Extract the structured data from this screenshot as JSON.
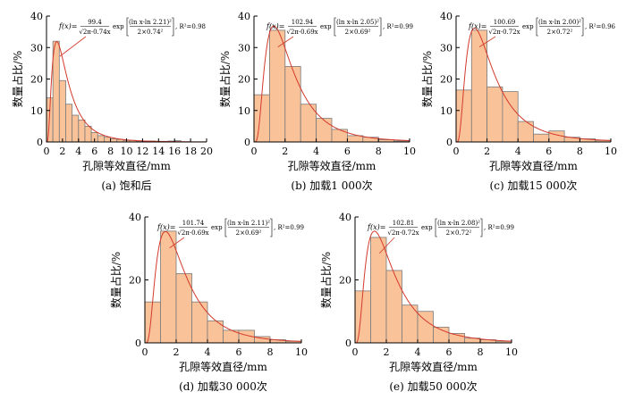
{
  "colors": {
    "bar_fill": "#f9c299",
    "bar_edge": "#7a7a7a",
    "fit_curve": "#d33a2c"
  },
  "chart_data": [
    {
      "type": "bar",
      "caption": "(a) 饱和后",
      "xlabel": "孔隙等效直径/mm",
      "ylabel": "数量占比/%",
      "xlim": [
        0,
        20
      ],
      "ylim": [
        0,
        40
      ],
      "xticks": [
        0,
        2,
        4,
        6,
        8,
        10,
        12,
        14,
        16,
        18,
        20
      ],
      "yticks": [
        0,
        10,
        20,
        30,
        40
      ],
      "bin_width": 0.8,
      "bin_start": [
        0,
        0.8,
        1.6,
        2.4,
        3.2,
        4.0,
        4.8,
        5.6,
        6.4,
        7.2,
        8.0,
        8.8,
        9.6,
        10.4,
        11.2,
        12.0,
        12.8,
        13.6,
        14.4,
        15.2,
        16.0
      ],
      "values": [
        14.0,
        32.0,
        19.5,
        12.0,
        8.5,
        7.0,
        5.0,
        3.0,
        2.0,
        1.5,
        1.0,
        0.8,
        0.5,
        0.5,
        0.3,
        0.3,
        0.3,
        0.2,
        0.2,
        0.3,
        0.4
      ],
      "fit": {
        "A": 99.4,
        "mu": 2.21,
        "sigma": 0.74,
        "r2": 0.98
      },
      "equation": {
        "lhs": "f(x)=",
        "numerator": "99.4",
        "denominator": "√2π·0.74x",
        "exp": "exp",
        "exp_numerator": "(ln x-ln 2.21)²",
        "exp_denominator": "2×0.74²",
        "r2": ", R²=0.98"
      }
    },
    {
      "type": "bar",
      "caption": "(b) 加载1 000次",
      "xlabel": "孔隙等效直径/mm",
      "ylabel": "数量占比/%",
      "xlim": [
        0,
        10
      ],
      "ylim": [
        0,
        40
      ],
      "xticks": [
        0,
        2,
        4,
        6,
        8,
        10
      ],
      "yticks": [
        0,
        10,
        20,
        30,
        40
      ],
      "bin_width": 1.0,
      "bin_start": [
        0,
        1,
        2,
        3,
        4,
        5,
        6,
        7,
        8,
        9
      ],
      "values": [
        15.0,
        35.5,
        24.0,
        12.0,
        7.5,
        4.0,
        2.0,
        1.5,
        0.7,
        0.3
      ],
      "fit": {
        "A": 102.94,
        "mu": 2.05,
        "sigma": 0.69,
        "r2": 0.99
      },
      "equation": {
        "lhs": "f(x)=",
        "numerator": "102.94",
        "denominator": "√2π·0.69x",
        "exp": "exp",
        "exp_numerator": "(ln x-ln 2.05)²",
        "exp_denominator": "2×0.69²",
        "r2": ", R²=0.99"
      }
    },
    {
      "type": "bar",
      "caption": "(c) 加载15 000次",
      "xlabel": "孔隙等效直径/mm",
      "ylabel": "数量占比/%",
      "xlim": [
        0,
        10
      ],
      "ylim": [
        0,
        40
      ],
      "xticks": [
        0,
        2,
        4,
        6,
        8,
        10
      ],
      "yticks": [
        0,
        10,
        20,
        30,
        40
      ],
      "bin_width": 1.0,
      "bin_start": [
        0,
        1,
        2,
        3,
        4,
        5,
        6,
        7,
        8,
        9
      ],
      "values": [
        16.5,
        35.5,
        17.5,
        16.0,
        6.5,
        2.5,
        3.5,
        1.5,
        1.0,
        0.5
      ],
      "fit": {
        "A": 100.69,
        "mu": 2.0,
        "sigma": 0.72,
        "r2": 0.96
      },
      "equation": {
        "lhs": "f(x)=",
        "numerator": "100.69",
        "denominator": "√2π·0.72x",
        "exp": "exp",
        "exp_numerator": "(ln x-ln 2.00)²",
        "exp_denominator": "2×0.72²",
        "r2": ", R²=0.96"
      }
    },
    {
      "type": "bar",
      "caption": "(d) 加载30 000次",
      "xlabel": "孔隙等效直径/mm",
      "ylabel": "数量占比/%",
      "xlim": [
        0,
        10
      ],
      "ylim": [
        0,
        40
      ],
      "xticks": [
        0,
        2,
        4,
        6,
        8,
        10
      ],
      "yticks": [
        0,
        20,
        40
      ],
      "bin_width": 1.0,
      "bin_start": [
        0,
        1,
        2,
        3,
        4,
        5,
        6,
        7,
        8,
        9
      ],
      "values": [
        13.0,
        35.5,
        22.0,
        13.0,
        7.0,
        4.0,
        4.0,
        2.0,
        1.0,
        0.5
      ],
      "fit": {
        "A": 101.74,
        "mu": 2.11,
        "sigma": 0.69,
        "r2": 0.99
      },
      "equation": {
        "lhs": "f(x)=",
        "numerator": "101.74",
        "denominator": "√2π·0.69x",
        "exp": "exp",
        "exp_numerator": "(ln x-ln 2.11)²",
        "exp_denominator": "2×0.69²",
        "r2": ", R²=0.99"
      }
    },
    {
      "type": "bar",
      "caption": "(e) 加载50 000次",
      "xlabel": "孔隙等效直径/mm",
      "ylabel": "数量占比/%",
      "xlim": [
        0,
        10
      ],
      "ylim": [
        0,
        40
      ],
      "xticks": [
        0,
        2,
        4,
        6,
        8,
        10
      ],
      "yticks": [
        0,
        20,
        40
      ],
      "bin_width": 1.0,
      "bin_start": [
        0,
        1,
        2,
        3,
        4,
        5,
        6,
        7,
        8,
        9
      ],
      "values": [
        16.5,
        33.5,
        23.0,
        12.0,
        10.0,
        5.0,
        3.0,
        1.5,
        1.0,
        0.5
      ],
      "fit": {
        "A": 102.81,
        "mu": 2.08,
        "sigma": 0.72,
        "r2": 0.99
      },
      "equation": {
        "lhs": "f(x)=",
        "numerator": "102.81",
        "denominator": "√2π·0.72x",
        "exp": "exp",
        "exp_numerator": "(ln x-ln 2.08)²",
        "exp_denominator": "2×0.72²",
        "r2": ", R²=0.99"
      }
    }
  ]
}
